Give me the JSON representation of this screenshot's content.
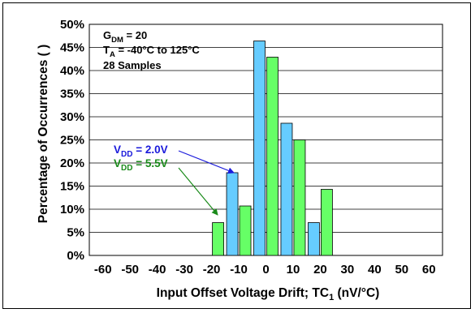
{
  "chart_data": {
    "type": "bar",
    "xlabel_main": "Input Offset Voltage Drift; TC",
    "xlabel_sub": "1",
    "xlabel_unit": " (nV/°C)",
    "ylabel": "Percentage of Occurrences ( )",
    "x_ticks": [
      "-60",
      "-50",
      "-40",
      "-30",
      "-20",
      "-10",
      "0",
      "10",
      "20",
      "30",
      "40",
      "50",
      "60"
    ],
    "y_ticks": [
      "0%",
      "5%",
      "10%",
      "15%",
      "20%",
      "25%",
      "30%",
      "35%",
      "40%",
      "45%",
      "50%"
    ],
    "xlim": [
      -65,
      65
    ],
    "ylim": [
      0,
      50
    ],
    "grid": true,
    "series": [
      {
        "name": "VDD = 2.0V",
        "color": "#66ccff",
        "points": [
          [
            -10,
            17.9
          ],
          [
            0,
            46.4
          ],
          [
            10,
            28.6
          ],
          [
            20,
            7.1
          ]
        ]
      },
      {
        "name": "VDD = 5.5V",
        "color": "#66ff66",
        "points": [
          [
            -20,
            7.1
          ],
          [
            -10,
            10.7
          ],
          [
            0,
            42.9
          ],
          [
            10,
            25.0
          ],
          [
            20,
            14.3
          ]
        ]
      }
    ],
    "conditions": {
      "gdm": {
        "base": "G",
        "sub": "DM",
        "rest": " = 20"
      },
      "ta": {
        "base": "T",
        "sub": "A",
        "rest": " = -40°C to 125°C"
      },
      "samples": "28 Samples"
    },
    "legend_labels": {
      "vdd1": {
        "base": "V",
        "sub": "DD",
        "rest": " = 2.0V"
      },
      "vdd2": {
        "base": "V",
        "sub": "DD",
        "rest": " = 5.5V"
      }
    },
    "colors": {
      "blue_series": "#66ccff",
      "green_series": "#66ff66",
      "blue_text": "#1a1adb",
      "green_text": "#1a8a1a"
    }
  }
}
